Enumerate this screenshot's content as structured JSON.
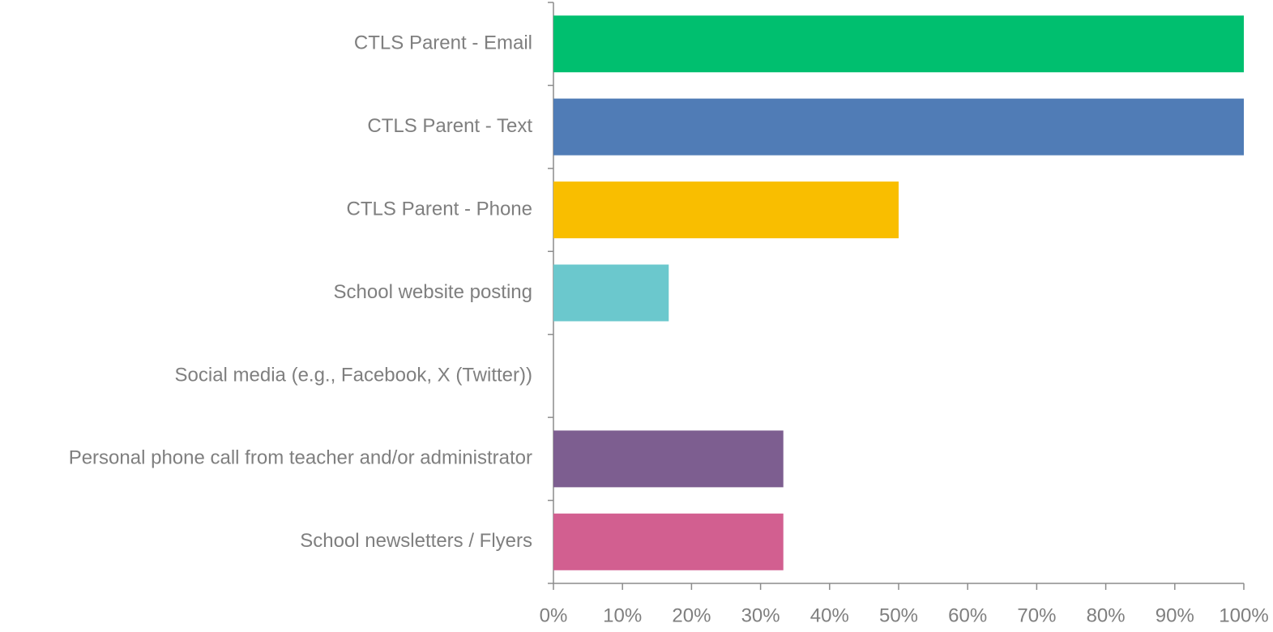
{
  "chart_data": {
    "type": "barh",
    "categories": [
      "CTLS Parent - Email",
      "CTLS Parent - Text",
      "CTLS Parent - Phone",
      "School website posting",
      "Social media (e.g., Facebook, X (Twitter))",
      "Personal phone call from teacher and/or administrator",
      "School newsletters / Flyers"
    ],
    "values": [
      100,
      100,
      50,
      16.7,
      0,
      33.3,
      33.3
    ],
    "colors": [
      "#00bf6f",
      "#507cb6",
      "#f9be00",
      "#6bc8cd",
      "#9e9e9e",
      "#7d5e90",
      "#d25f90"
    ],
    "xlim": [
      0,
      100
    ],
    "xticks": [
      {
        "value": 0,
        "label": "0%"
      },
      {
        "value": 10,
        "label": "10%"
      },
      {
        "value": 20,
        "label": "20%"
      },
      {
        "value": 30,
        "label": "30%"
      },
      {
        "value": 40,
        "label": "40%"
      },
      {
        "value": 50,
        "label": "50%"
      },
      {
        "value": 60,
        "label": "60%"
      },
      {
        "value": 70,
        "label": "70%"
      },
      {
        "value": 80,
        "label": "80%"
      },
      {
        "value": 90,
        "label": "90%"
      },
      {
        "value": 100,
        "label": "100%"
      }
    ]
  }
}
